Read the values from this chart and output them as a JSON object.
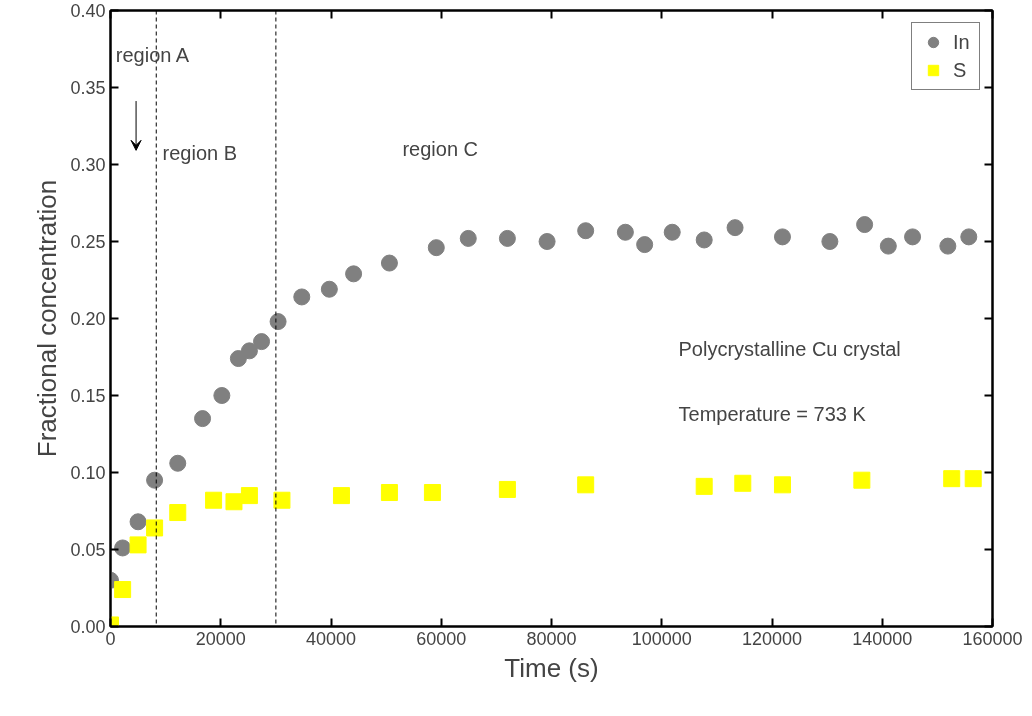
{
  "chart_data": {
    "type": "scatter",
    "xlabel": "Time (s)",
    "ylabel": "Fractional concentration",
    "xlim": [
      0,
      160000
    ],
    "ylim": [
      0,
      0.4
    ],
    "xticks": [
      0,
      20000,
      40000,
      60000,
      80000,
      100000,
      120000,
      140000,
      160000
    ],
    "yticks": [
      {
        "value": 0,
        "label": "0.00"
      },
      0.05,
      {
        "value": 0.1,
        "label": "0.10"
      },
      0.15,
      {
        "value": 0.2,
        "label": "0.20"
      },
      0.25,
      {
        "value": 0.3,
        "label": "0.30"
      },
      0.35,
      {
        "value": 0.4,
        "label": "0.40"
      }
    ],
    "grid": false,
    "legend": "top right",
    "series": [
      {
        "name": "In",
        "color": "#808080",
        "marker": "circle",
        "x": [
          0,
          2200,
          5000,
          8000,
          12200,
          16700,
          20200,
          23200,
          25200,
          27400,
          30400,
          34700,
          39700,
          44100,
          50600,
          59100,
          64900,
          72000,
          79200,
          86200,
          93400,
          96900,
          101900,
          107700,
          113300,
          121900,
          130500,
          136800,
          141100,
          145500,
          151900,
          155700
        ],
        "values": [
          0.03,
          0.051,
          0.068,
          0.095,
          0.106,
          0.135,
          0.15,
          0.174,
          0.179,
          0.185,
          0.198,
          0.214,
          0.219,
          0.229,
          0.236,
          0.246,
          0.252,
          0.252,
          0.25,
          0.257,
          0.256,
          0.248,
          0.256,
          0.251,
          0.259,
          0.253,
          0.25,
          0.261,
          0.247,
          0.253,
          0.247,
          0.253
        ]
      },
      {
        "name": "S",
        "color": "#ffff00",
        "marker": "square",
        "x": [
          0,
          2200,
          5000,
          8000,
          12200,
          18700,
          22400,
          25200,
          31100,
          41900,
          50600,
          58400,
          72000,
          86200,
          107700,
          114700,
          121900,
          136300,
          152600,
          156500
        ],
        "values": [
          0.001,
          0.024,
          0.053,
          0.064,
          0.074,
          0.082,
          0.081,
          0.085,
          0.082,
          0.085,
          0.087,
          0.087,
          0.089,
          0.092,
          0.091,
          0.093,
          0.092,
          0.095,
          0.096,
          0.096
        ]
      }
    ],
    "ref_lines": [
      {
        "axis": "x",
        "value": 8300,
        "label": null,
        "color": "#000000",
        "line_style": "dashed"
      },
      {
        "axis": "x",
        "value": 30000,
        "label": null,
        "color": "#000000",
        "line_style": "dashed"
      }
    ],
    "annotations": [
      "region A",
      "region B",
      "region C",
      "Polycrystalline Cu crystal",
      "Temperature = 733 K"
    ]
  }
}
